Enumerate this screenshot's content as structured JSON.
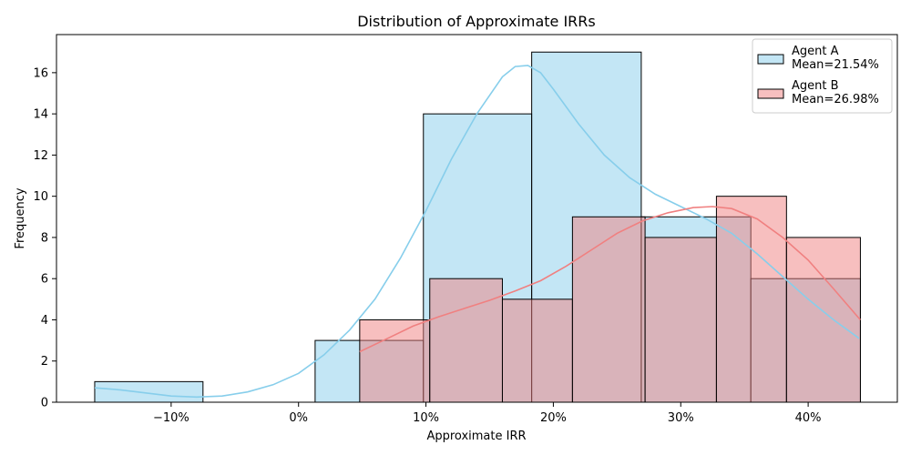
{
  "chart_data": {
    "type": "histogram",
    "title": "Distribution of Approximate IRRs",
    "xlabel": "Approximate IRR",
    "ylabel": "Frequency",
    "xlim": [
      -19.0,
      47.0
    ],
    "ylim": [
      0,
      17.85
    ],
    "x_ticks": [
      -10,
      0,
      10,
      20,
      30,
      40
    ],
    "x_tick_labels": [
      "−10%",
      "0%",
      "10%",
      "20%",
      "30%",
      "40%"
    ],
    "y_ticks": [
      0,
      2,
      4,
      6,
      8,
      10,
      12,
      14,
      16
    ],
    "y_tick_labels": [
      "0",
      "2",
      "4",
      "6",
      "8",
      "10",
      "12",
      "14",
      "16"
    ],
    "legend_position": "top-right",
    "series": [
      {
        "name": "Agent A",
        "legend_line2": "Mean=21.54%",
        "fill": "#87ceeb",
        "line": "#87ceeb",
        "bins": [
          {
            "x0": -16.0,
            "x1": -7.5,
            "count": 1
          },
          {
            "x0": -7.5,
            "x1": 1.3,
            "count": 0
          },
          {
            "x0": 1.3,
            "x1": 9.8,
            "count": 3
          },
          {
            "x0": 9.8,
            "x1": 18.3,
            "count": 14
          },
          {
            "x0": 18.3,
            "x1": 26.9,
            "count": 17
          },
          {
            "x0": 26.9,
            "x1": 35.5,
            "count": 9
          },
          {
            "x0": 35.5,
            "x1": 44.1,
            "count": 6
          }
        ],
        "kde": [
          [
            -16.0,
            0.7
          ],
          [
            -14.0,
            0.6
          ],
          [
            -12.0,
            0.45
          ],
          [
            -10.0,
            0.3
          ],
          [
            -8.0,
            0.25
          ],
          [
            -6.0,
            0.3
          ],
          [
            -4.0,
            0.5
          ],
          [
            -2.0,
            0.85
          ],
          [
            0.0,
            1.4
          ],
          [
            2.0,
            2.3
          ],
          [
            4.0,
            3.5
          ],
          [
            6.0,
            5.0
          ],
          [
            8.0,
            7.0
          ],
          [
            10.0,
            9.3
          ],
          [
            12.0,
            11.8
          ],
          [
            14.0,
            14.0
          ],
          [
            16.0,
            15.8
          ],
          [
            17.0,
            16.3
          ],
          [
            18.0,
            16.35
          ],
          [
            19.0,
            16.0
          ],
          [
            20.0,
            15.2
          ],
          [
            22.0,
            13.5
          ],
          [
            24.0,
            12.0
          ],
          [
            26.0,
            10.9
          ],
          [
            28.0,
            10.1
          ],
          [
            30.0,
            9.5
          ],
          [
            32.0,
            8.9
          ],
          [
            34.0,
            8.2
          ],
          [
            36.0,
            7.2
          ],
          [
            38.0,
            6.1
          ],
          [
            40.0,
            5.0
          ],
          [
            42.0,
            4.0
          ],
          [
            44.0,
            3.1
          ]
        ]
      },
      {
        "name": "Agent B",
        "legend_line2": "Mean=26.98%",
        "fill": "#f08080",
        "line": "#f08080",
        "bins": [
          {
            "x0": 4.8,
            "x1": 10.3,
            "count": 4
          },
          {
            "x0": 10.3,
            "x1": 16.0,
            "count": 6
          },
          {
            "x0": 16.0,
            "x1": 21.5,
            "count": 5
          },
          {
            "x0": 21.5,
            "x1": 27.2,
            "count": 9
          },
          {
            "x0": 27.2,
            "x1": 32.8,
            "count": 8
          },
          {
            "x0": 32.8,
            "x1": 38.3,
            "count": 10
          },
          {
            "x0": 38.3,
            "x1": 44.1,
            "count": 8
          }
        ],
        "kde": [
          [
            4.8,
            2.45
          ],
          [
            7.0,
            3.1
          ],
          [
            9.0,
            3.7
          ],
          [
            11.0,
            4.15
          ],
          [
            13.0,
            4.55
          ],
          [
            15.0,
            4.95
          ],
          [
            17.0,
            5.4
          ],
          [
            19.0,
            5.9
          ],
          [
            21.0,
            6.6
          ],
          [
            23.0,
            7.4
          ],
          [
            25.0,
            8.2
          ],
          [
            27.0,
            8.8
          ],
          [
            29.0,
            9.2
          ],
          [
            31.0,
            9.45
          ],
          [
            32.5,
            9.5
          ],
          [
            34.0,
            9.4
          ],
          [
            36.0,
            8.9
          ],
          [
            38.0,
            8.0
          ],
          [
            40.0,
            6.9
          ],
          [
            42.0,
            5.5
          ],
          [
            44.1,
            4.0
          ]
        ]
      }
    ]
  }
}
